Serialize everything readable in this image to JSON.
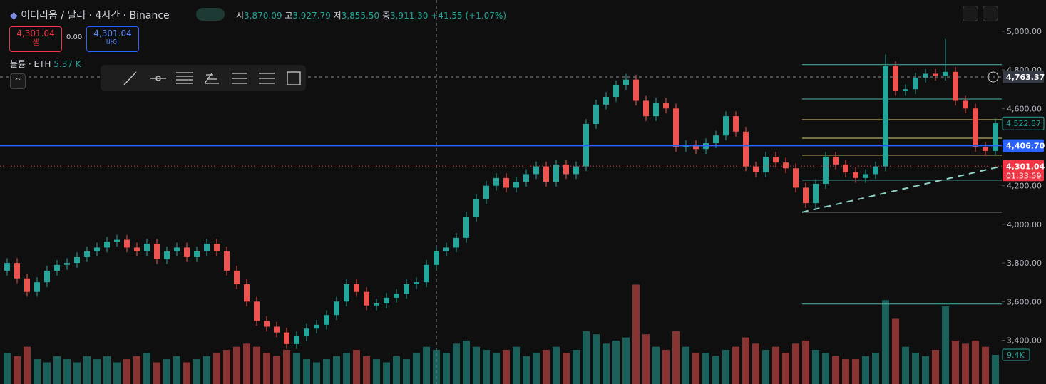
{
  "ui": {
    "symbol": "이더리움 / 달러 · 4시간 · Binance",
    "open_label": "시",
    "open": "3,870.09",
    "high_label": "고",
    "high": "3,927.79",
    "low_label": "저",
    "low": "3,855.50",
    "close_label": "종",
    "close": "3,911.30",
    "change": "+41.55 (+1.07%)",
    "sell_price": "4,301.04",
    "sell": "셀",
    "spread": "0.00",
    "buy_price": "4,301.04",
    "buy": "바이",
    "volume_title": "볼륨 · ETH",
    "volume_value": "5.37 K",
    "countdown": "01:33:59"
  },
  "chart_data": {
    "type": "candlestick",
    "up_color": "#26a69a",
    "down_color": "#ef5350",
    "open": [
      3760,
      3800,
      3720,
      3650,
      3700,
      3760,
      3790,
      3800,
      3830,
      3860,
      3880,
      3910,
      3920,
      3880,
      3860,
      3900,
      3820,
      3860,
      3880,
      3830,
      3860,
      3900,
      3860,
      3760,
      3690,
      3600,
      3500,
      3470,
      3440,
      3380,
      3420,
      3460,
      3480,
      3530,
      3600,
      3690,
      3650,
      3580,
      3590,
      3620,
      3640,
      3690,
      3700,
      3790,
      3860,
      3880,
      3930,
      4040,
      4130,
      4200,
      4240,
      4190,
      4220,
      4260,
      4300,
      4220,
      4310,
      4260,
      4300,
      4520,
      4620,
      4660,
      4720,
      4750,
      4640,
      4560,
      4630,
      4600,
      4400,
      4410,
      4390,
      4420,
      4460,
      4560,
      4480,
      4300,
      4270,
      4350,
      4320,
      4290,
      4190,
      4110,
      4210,
      4350,
      4310,
      4270,
      4240,
      4260,
      4300,
      4820,
      4690,
      4700,
      4760,
      4780,
      4770,
      4790,
      4640,
      4600,
      4400,
      4380
    ],
    "high": [
      3825,
      3825,
      3745,
      3725,
      3785,
      3815,
      3825,
      3855,
      3885,
      3905,
      3935,
      3945,
      3945,
      3905,
      3925,
      3925,
      3885,
      3905,
      3905,
      3885,
      3925,
      3925,
      3885,
      3785,
      3715,
      3625,
      3525,
      3495,
      3465,
      3445,
      3485,
      3505,
      3555,
      3625,
      3715,
      3715,
      3675,
      3615,
      3645,
      3665,
      3715,
      3725,
      3815,
      3885,
      3905,
      3955,
      4065,
      4155,
      4225,
      4265,
      4265,
      4245,
      4285,
      4325,
      4325,
      4335,
      4335,
      4325,
      4545,
      4645,
      4685,
      4745,
      4780,
      4775,
      4665,
      4655,
      4655,
      4625,
      4435,
      4435,
      4445,
      4485,
      4585,
      4585,
      4505,
      4325,
      4375,
      4375,
      4345,
      4315,
      4215,
      4235,
      4375,
      4375,
      4335,
      4295,
      4285,
      4325,
      4880,
      4845,
      4725,
      4785,
      4805,
      4805,
      4960,
      4815,
      4665,
      4625,
      4425,
      4548
    ],
    "low": [
      3735,
      3695,
      3625,
      3625,
      3675,
      3735,
      3765,
      3775,
      3805,
      3835,
      3855,
      3885,
      3855,
      3835,
      3835,
      3795,
      3795,
      3835,
      3805,
      3805,
      3835,
      3835,
      3735,
      3665,
      3575,
      3475,
      3445,
      3415,
      3355,
      3355,
      3395,
      3435,
      3455,
      3505,
      3575,
      3625,
      3555,
      3555,
      3565,
      3595,
      3615,
      3665,
      3675,
      3765,
      3835,
      3855,
      3905,
      4015,
      4105,
      4175,
      4165,
      4165,
      4195,
      4235,
      4195,
      4195,
      4235,
      4235,
      4275,
      4495,
      4595,
      4635,
      4695,
      4615,
      4535,
      4535,
      4575,
      4375,
      4375,
      4365,
      4365,
      4395,
      4435,
      4455,
      4275,
      4245,
      4245,
      4295,
      4265,
      4165,
      4085,
      4085,
      4185,
      4285,
      4245,
      4215,
      4215,
      4235,
      4275,
      4665,
      4665,
      4675,
      4735,
      4745,
      4745,
      4615,
      4575,
      4375,
      4355,
      4355
    ],
    "close": [
      3800,
      3720,
      3650,
      3700,
      3760,
      3790,
      3800,
      3830,
      3860,
      3880,
      3910,
      3920,
      3880,
      3860,
      3900,
      3820,
      3860,
      3880,
      3830,
      3860,
      3900,
      3860,
      3760,
      3690,
      3600,
      3500,
      3470,
      3440,
      3380,
      3420,
      3460,
      3480,
      3530,
      3600,
      3690,
      3650,
      3580,
      3590,
      3620,
      3640,
      3690,
      3700,
      3790,
      3860,
      3880,
      3930,
      4040,
      4130,
      4200,
      4240,
      4190,
      4220,
      4260,
      4300,
      4220,
      4310,
      4260,
      4300,
      4520,
      4620,
      4660,
      4720,
      4750,
      4640,
      4560,
      4630,
      4600,
      4400,
      4410,
      4390,
      4420,
      4460,
      4560,
      4480,
      4300,
      4270,
      4350,
      4320,
      4290,
      4190,
      4110,
      4210,
      4350,
      4310,
      4270,
      4240,
      4260,
      4300,
      4820,
      4690,
      4700,
      4760,
      4780,
      4770,
      4790,
      4640,
      4600,
      4400,
      4380,
      4523
    ],
    "volume": [
      10000,
      9000,
      12000,
      8000,
      7000,
      9000,
      8000,
      7000,
      9000,
      8000,
      9000,
      7000,
      8000,
      9000,
      10000,
      7000,
      8000,
      9000,
      7000,
      8000,
      9000,
      10000,
      11000,
      12000,
      13000,
      12000,
      10000,
      9000,
      11000,
      10000,
      8000,
      7000,
      8000,
      9000,
      10000,
      11000,
      9000,
      8000,
      7000,
      9000,
      8000,
      10000,
      12000,
      11000,
      10000,
      13000,
      14000,
      12000,
      11000,
      10000,
      11000,
      12000,
      9000,
      10000,
      11000,
      12000,
      10000,
      11000,
      17000,
      16000,
      13000,
      14000,
      15000,
      32000,
      16000,
      12000,
      11000,
      17000,
      12000,
      10000,
      10000,
      9000,
      11000,
      12000,
      15000,
      13000,
      11000,
      12000,
      10000,
      13000,
      14000,
      11000,
      10000,
      9000,
      8000,
      8000,
      9000,
      10000,
      27000,
      21000,
      12000,
      10000,
      9000,
      11000,
      25000,
      14000,
      13000,
      14000,
      12000,
      9400
    ],
    "volume_last_label": "9.4K",
    "volume_lim": [
      0,
      123600
    ],
    "ylim": [
      3173,
      5162
    ],
    "yticks": [
      {
        "value": 5000,
        "label": "5,000.00"
      },
      {
        "value": 4800,
        "label": "4,800.00"
      },
      {
        "value": 4600,
        "label": "4,600.00"
      },
      {
        "value": 4200,
        "label": "4,200.00"
      },
      {
        "value": 4000,
        "label": "4,000.00"
      },
      {
        "value": 3800,
        "label": "3,800.00"
      },
      {
        "value": 3600,
        "label": "3,600.00"
      },
      {
        "value": 3400,
        "label": "3,400.00"
      }
    ],
    "levels": [
      {
        "value": 4827,
        "color": "#4db6ac"
      },
      {
        "value": 4649,
        "color": "#4db6ac"
      },
      {
        "value": 4542,
        "color": "#e0d07a"
      },
      {
        "value": 4446,
        "color": "#e0d07a"
      },
      {
        "value": 4358,
        "color": "#e0d07a"
      },
      {
        "value": 4229,
        "color": "#4db6ac"
      },
      {
        "value": 4063,
        "color": "#9e9e9e"
      },
      {
        "value": 3587,
        "color": "#4db6ac"
      }
    ],
    "trendline": [
      4063,
      4301
    ],
    "hline_crosshair": {
      "value": 4763.37,
      "label": "4,763.37"
    },
    "hline_blue": {
      "value": 4406.7,
      "label": "4,406.70",
      "color": "#2962ff"
    },
    "hline_last": {
      "value": 4301.04,
      "label": "4,301.04",
      "color": "#f23645"
    },
    "marker_green": {
      "value": 4522.87,
      "label": "4,522.87"
    }
  }
}
